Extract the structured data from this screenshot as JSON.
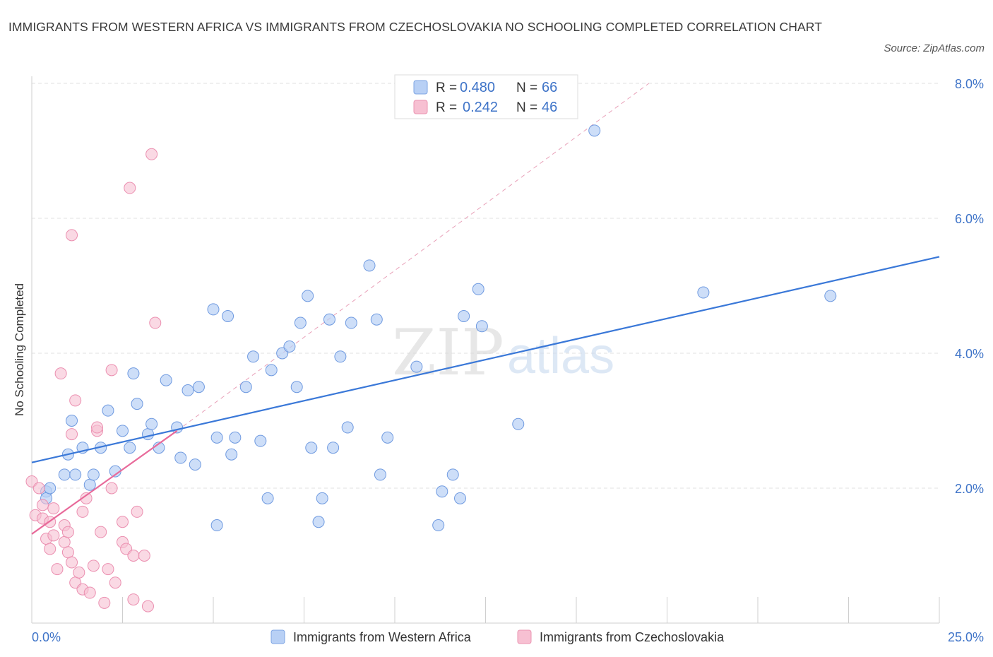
{
  "title": "IMMIGRANTS FROM WESTERN AFRICA VS IMMIGRANTS FROM CZECHOSLOVAKIA NO SCHOOLING COMPLETED CORRELATION CHART",
  "source": "Source: ZipAtlas.com",
  "watermark": {
    "zip": "ZIP",
    "atlas": "atlas"
  },
  "colors": {
    "blue": "#3a78d8",
    "blue_fill": "#b8d0f5",
    "pink": "#e86a9a",
    "pink_fill": "#f7c0d2",
    "axis_label": "#3f74c8"
  },
  "legend": {
    "rows": [
      {
        "r_label": "R =",
        "r_value": "0.480",
        "n_label": "N =",
        "n_value": "66"
      },
      {
        "r_label": "R =",
        "r_value": "0.242",
        "n_label": "N =",
        "n_value": "46"
      }
    ]
  },
  "chart_data": {
    "type": "scatter",
    "xlabel": "",
    "ylabel": "No Schooling Completed",
    "xlim": [
      0,
      25
    ],
    "ylim": [
      0,
      8
    ],
    "x_tick_labels": [
      "0.0%",
      "25.0%"
    ],
    "y_ticks": [
      2,
      4,
      6,
      8
    ],
    "y_tick_labels": [
      "2.0%",
      "4.0%",
      "6.0%",
      "8.0%"
    ],
    "grid": true,
    "legend_placement": "bottom-center",
    "series": [
      {
        "name": "Immigrants from Western Africa",
        "color": "#3a78d8",
        "trend": {
          "x": [
            0,
            25
          ],
          "y": [
            2.38,
            5.43
          ]
        },
        "points": [
          [
            0.4,
            1.95
          ],
          [
            0.4,
            1.85
          ],
          [
            0.5,
            2.0
          ],
          [
            0.9,
            2.2
          ],
          [
            1.0,
            2.5
          ],
          [
            1.1,
            3.0
          ],
          [
            1.2,
            2.2
          ],
          [
            1.4,
            2.6
          ],
          [
            1.6,
            2.05
          ],
          [
            1.7,
            2.2
          ],
          [
            1.9,
            2.6
          ],
          [
            2.1,
            3.15
          ],
          [
            2.3,
            2.25
          ],
          [
            2.5,
            2.85
          ],
          [
            2.7,
            2.6
          ],
          [
            2.8,
            3.7
          ],
          [
            2.9,
            3.25
          ],
          [
            3.2,
            2.8
          ],
          [
            3.3,
            2.95
          ],
          [
            3.5,
            2.6
          ],
          [
            3.7,
            3.6
          ],
          [
            4.0,
            2.9
          ],
          [
            4.1,
            2.45
          ],
          [
            4.3,
            3.45
          ],
          [
            4.6,
            3.5
          ],
          [
            4.5,
            2.35
          ],
          [
            5.0,
            4.65
          ],
          [
            5.1,
            2.75
          ],
          [
            5.1,
            1.45
          ],
          [
            5.4,
            4.55
          ],
          [
            5.5,
            2.5
          ],
          [
            5.6,
            2.75
          ],
          [
            5.9,
            3.5
          ],
          [
            6.1,
            3.95
          ],
          [
            6.3,
            2.7
          ],
          [
            6.5,
            1.85
          ],
          [
            6.6,
            3.75
          ],
          [
            6.9,
            4.0
          ],
          [
            7.1,
            4.1
          ],
          [
            7.3,
            3.5
          ],
          [
            7.4,
            4.45
          ],
          [
            7.6,
            4.85
          ],
          [
            7.7,
            2.6
          ],
          [
            7.9,
            1.5
          ],
          [
            8.0,
            1.85
          ],
          [
            8.2,
            4.5
          ],
          [
            8.3,
            2.6
          ],
          [
            8.5,
            3.95
          ],
          [
            8.7,
            2.9
          ],
          [
            8.8,
            4.45
          ],
          [
            9.3,
            5.3
          ],
          [
            9.5,
            4.5
          ],
          [
            9.6,
            2.2
          ],
          [
            9.8,
            2.75
          ],
          [
            10.6,
            3.8
          ],
          [
            11.2,
            1.45
          ],
          [
            11.3,
            1.95
          ],
          [
            11.6,
            2.2
          ],
          [
            11.8,
            1.85
          ],
          [
            11.9,
            4.55
          ],
          [
            12.3,
            4.95
          ],
          [
            12.4,
            4.4
          ],
          [
            13.4,
            2.95
          ],
          [
            15.5,
            7.3
          ],
          [
            18.5,
            4.9
          ],
          [
            22.0,
            4.85
          ]
        ]
      },
      {
        "name": "Immigrants from Czechoslovakia",
        "color": "#e86a9a",
        "trend": {
          "x": [
            0,
            4.0
          ],
          "y": [
            1.32,
            2.85
          ]
        },
        "trend_ext": {
          "x": [
            4.0,
            17.0
          ],
          "y": [
            2.85,
            8.0
          ]
        },
        "points": [
          [
            0.0,
            2.1
          ],
          [
            0.1,
            1.6
          ],
          [
            0.2,
            2.0
          ],
          [
            0.3,
            1.55
          ],
          [
            0.3,
            1.75
          ],
          [
            0.4,
            1.25
          ],
          [
            0.5,
            1.5
          ],
          [
            0.5,
            1.1
          ],
          [
            0.6,
            1.7
          ],
          [
            0.6,
            1.3
          ],
          [
            0.7,
            0.8
          ],
          [
            0.8,
            3.7
          ],
          [
            0.9,
            1.45
          ],
          [
            0.9,
            1.2
          ],
          [
            1.0,
            1.35
          ],
          [
            1.0,
            1.05
          ],
          [
            1.1,
            2.8
          ],
          [
            1.1,
            0.9
          ],
          [
            1.2,
            3.3
          ],
          [
            1.2,
            0.6
          ],
          [
            1.3,
            0.75
          ],
          [
            1.4,
            1.65
          ],
          [
            1.4,
            0.5
          ],
          [
            1.5,
            1.85
          ],
          [
            1.6,
            0.45
          ],
          [
            1.7,
            0.85
          ],
          [
            1.8,
            2.85
          ],
          [
            1.8,
            2.9
          ],
          [
            1.9,
            1.35
          ],
          [
            2.0,
            0.3
          ],
          [
            2.1,
            0.8
          ],
          [
            2.2,
            2.0
          ],
          [
            2.2,
            3.75
          ],
          [
            2.3,
            0.6
          ],
          [
            2.5,
            1.2
          ],
          [
            2.5,
            1.5
          ],
          [
            2.6,
            1.1
          ],
          [
            2.7,
            6.45
          ],
          [
            2.8,
            1.0
          ],
          [
            2.8,
            0.35
          ],
          [
            2.9,
            1.65
          ],
          [
            3.1,
            1.0
          ],
          [
            3.2,
            0.25
          ],
          [
            3.3,
            6.95
          ],
          [
            3.4,
            4.45
          ],
          [
            1.1,
            5.75
          ]
        ]
      }
    ]
  }
}
